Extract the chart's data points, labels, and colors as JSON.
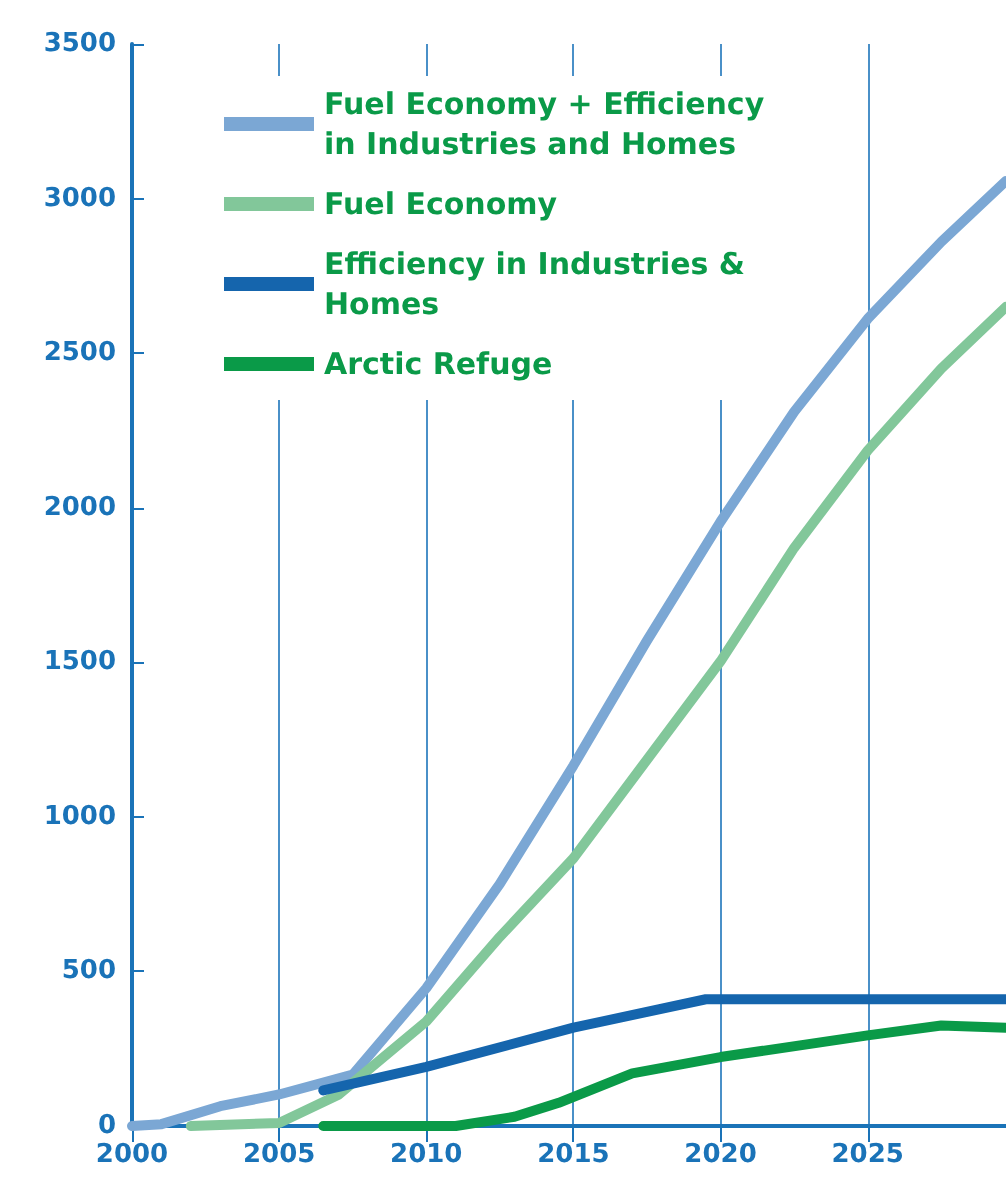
{
  "chart_data": {
    "type": "line",
    "xlim": [
      2000,
      2029.7
    ],
    "xticks": [
      2000,
      2005,
      2010,
      2015,
      2020,
      2025
    ],
    "ylim": [
      0,
      3500
    ],
    "yticks": [
      0,
      500,
      1000,
      1500,
      2000,
      2500,
      3000,
      3500
    ],
    "grid": "x",
    "legend": "top left",
    "marker": "none",
    "line_style": "solid",
    "series": [
      {
        "name": "Fuel Economy + Efficiency in Industries and Homes",
        "color": "#7ba7d4",
        "x": [
          2000,
          2001,
          2003,
          2005,
          2007.5,
          2010,
          2012.5,
          2015,
          2017.5,
          2020,
          2022.5,
          2025,
          2027.5,
          2029.7
        ],
        "values": [
          0,
          6,
          64,
          102,
          166,
          446,
          783,
          1166,
          1570,
          1955,
          2310,
          2611,
          2860,
          3057
        ]
      },
      {
        "name": "Fuel Economy",
        "color": "#82c79a",
        "x": [
          2002,
          2005,
          2007,
          2010,
          2012.5,
          2015,
          2017.5,
          2020,
          2022.5,
          2025,
          2027.5,
          2029.7
        ],
        "values": [
          0,
          10,
          100,
          338,
          612,
          866,
          1185,
          1503,
          1870,
          2185,
          2450,
          2650
        ]
      },
      {
        "name": "Efficiency in Industries & Homes",
        "color": "#1565ad",
        "x": [
          2006.5,
          2010,
          2015,
          2019.5,
          2029.7
        ],
        "values": [
          115,
          191,
          318,
          410,
          410
        ]
      },
      {
        "name": "Arctic Refuge",
        "color": "#0a9a48",
        "x": [
          2006.5,
          2011,
          2013,
          2014.5,
          2017,
          2020,
          2025,
          2027.5,
          2029.7
        ],
        "values": [
          0,
          0,
          30,
          75,
          170,
          223,
          293,
          325,
          318
        ]
      }
    ]
  }
}
